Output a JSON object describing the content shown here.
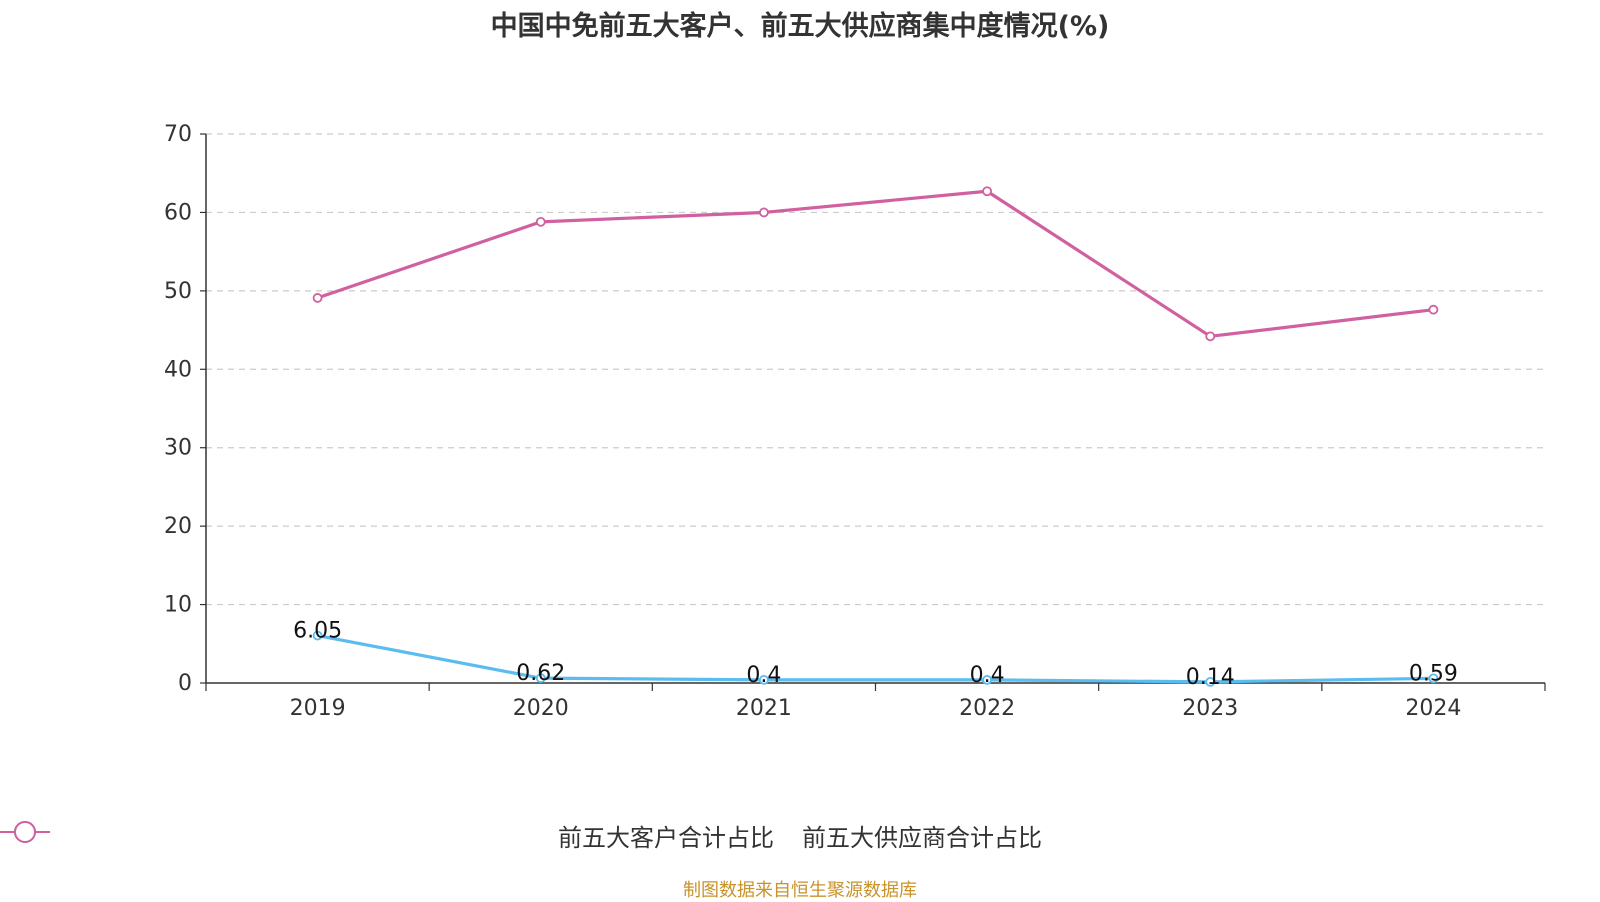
{
  "chart_data": {
    "type": "line",
    "title": "中国中免前五大客户、前五大供应商集中度情况(%)",
    "categories": [
      "2019",
      "2020",
      "2021",
      "2022",
      "2023",
      "2024"
    ],
    "ylim": [
      0,
      70
    ],
    "yticks": [
      0,
      10,
      20,
      30,
      40,
      50,
      60,
      70
    ],
    "grid": true,
    "legend_position": "bottom",
    "series": [
      {
        "name": "前五大客户合计占比",
        "values": [
          6.05,
          0.62,
          0.4,
          0.4,
          0.14,
          0.59
        ],
        "labels": [
          "6.05",
          "0.62",
          "0.4",
          "0.4",
          "0.14",
          "0.59"
        ],
        "color": "#5bbcf0",
        "show_labels": true
      },
      {
        "name": "前五大供应商合计占比",
        "values": [
          49.1,
          58.8,
          60.0,
          62.7,
          44.2,
          47.6
        ],
        "color": "#d0609f",
        "show_labels": false
      }
    ]
  },
  "source": "制图数据来自恒生聚源数据库"
}
